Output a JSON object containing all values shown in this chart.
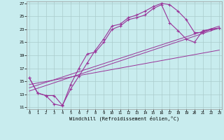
{
  "xlabel": "Windchill (Refroidissement éolien,°C)",
  "background_color": "#c8ecee",
  "grid_color": "#aacccc",
  "line_color": "#993399",
  "xmin": 0,
  "xmax": 23,
  "ymin": 11,
  "ymax": 27,
  "yticks": [
    11,
    13,
    15,
    17,
    19,
    21,
    23,
    25,
    27
  ],
  "xticks": [
    0,
    1,
    2,
    3,
    4,
    5,
    6,
    7,
    8,
    9,
    10,
    11,
    12,
    13,
    14,
    15,
    16,
    17,
    18,
    19,
    20,
    21,
    22,
    23
  ],
  "curve1_x": [
    0,
    1,
    2,
    3,
    4,
    5,
    6,
    7,
    8,
    9,
    10,
    11,
    12,
    13,
    14,
    15,
    16,
    17,
    18,
    19,
    20,
    21,
    22,
    23
  ],
  "curve1_y": [
    15.5,
    13.2,
    12.8,
    11.5,
    11.2,
    14.5,
    17.0,
    19.2,
    19.5,
    21.0,
    23.0,
    23.5,
    24.5,
    24.8,
    25.2,
    26.2,
    26.8,
    24.0,
    22.8,
    21.5,
    21.0,
    22.8,
    23.0,
    23.2
  ],
  "curve2_x": [
    0,
    1,
    2,
    3,
    4,
    5,
    6,
    7,
    8,
    9,
    10,
    11,
    12,
    13,
    14,
    15,
    16,
    17,
    18,
    19,
    20,
    21,
    22,
    23
  ],
  "curve2_y": [
    15.5,
    13.2,
    12.8,
    12.8,
    11.3,
    13.8,
    15.8,
    17.8,
    19.8,
    21.5,
    23.5,
    23.8,
    24.8,
    25.2,
    25.8,
    26.5,
    27.0,
    26.8,
    25.8,
    24.5,
    22.5,
    22.5,
    23.0,
    23.2
  ],
  "line1_x": [
    0,
    23
  ],
  "line1_y": [
    13.5,
    23.2
  ],
  "line2_x": [
    0,
    23
  ],
  "line2_y": [
    14.0,
    23.5
  ],
  "line3_x": [
    0,
    23
  ],
  "line3_y": [
    14.5,
    19.8
  ]
}
